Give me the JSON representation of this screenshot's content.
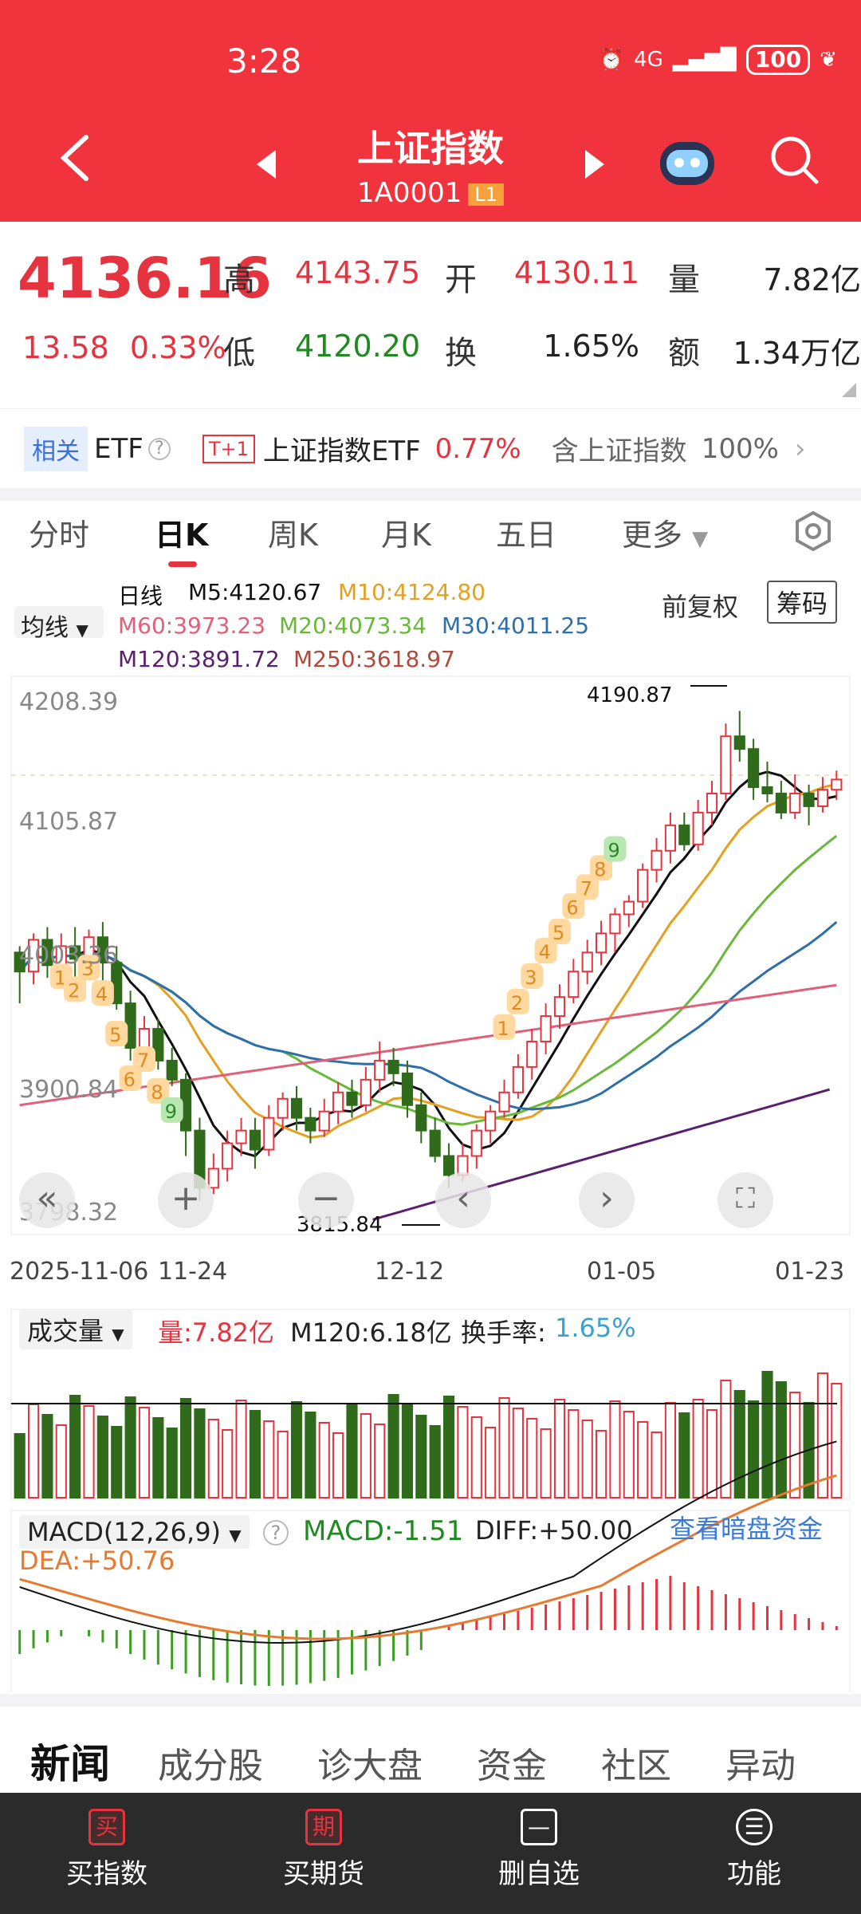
{
  "status": {
    "time": "3:28",
    "network": "4G",
    "battery": "100"
  },
  "header": {
    "title": "上证指数",
    "code": "1A0001",
    "level": "L1"
  },
  "quote": {
    "price": "4136.16",
    "change": "13.58",
    "change_pct": "0.33%",
    "high_label": "高",
    "high": "4143.75",
    "open_label": "开",
    "open": "4130.11",
    "vol_label": "量",
    "vol": "7.82亿",
    "low_label": "低",
    "low": "4120.20",
    "turn_label": "换",
    "turn": "1.65%",
    "amt_label": "额",
    "amt": "1.34万亿"
  },
  "etf": {
    "tag": "相关",
    "etf": "ETF",
    "tp": "T+1",
    "name": "上证指数ETF",
    "pct": "0.77%",
    "contains": "含上证指数",
    "weight": "100%"
  },
  "tabs": [
    "分时",
    "日K",
    "周K",
    "月K",
    "五日",
    "更多"
  ],
  "ma": {
    "selector": "均线",
    "line": "日线",
    "m5": "M5:4120.67",
    "m10": "M10:4124.80",
    "m60": "M60:3973.23",
    "m20": "M20:4073.34",
    "m30": "M30:4011.25",
    "m120": "M120:3891.72",
    "m250": "M250:3618.97"
  },
  "fuquan": "前复权",
  "chouma": "筹码",
  "axis": {
    "y1": "4208.39",
    "y2": "4105.87",
    "y3": "4003.36",
    "y4": "3900.84",
    "y5": "3798.32",
    "x1": "2025-11-06",
    "x2": "11-24",
    "x3": "12-12",
    "x4": "01-05",
    "x5": "01-23",
    "hi_mark": "4190.87",
    "lo_mark": "3815.84"
  },
  "volume": {
    "selector": "成交量",
    "vol": "量:7.82亿",
    "m120": "M120:6.18亿",
    "turn_label": "换手率:",
    "turn": "1.65%"
  },
  "macd": {
    "selector": "MACD(12,26,9)",
    "macd": "MACD:-1.51",
    "diff": "DIFF:+50.00",
    "dea": "DEA:+50.76",
    "dark": "查看暗盘资金"
  },
  "news_tabs": [
    "新闻",
    "成分股",
    "诊大盘",
    "资金",
    "社区",
    "异动"
  ],
  "bottom": [
    {
      "icon": "买",
      "label": "买指数"
    },
    {
      "icon": "期",
      "label": "买期货"
    },
    {
      "icon": "—",
      "label": "删自选"
    },
    {
      "icon": "☰",
      "label": "功能"
    }
  ],
  "td_numbers": [
    "1",
    "2",
    "3",
    "4",
    "5",
    "6",
    "7",
    "8",
    "9"
  ],
  "chart_data": {
    "type": "candlestick",
    "ylim": [
      3798.32,
      4208.39
    ],
    "series": [
      {
        "name": "K",
        "values": [
          [
            4000,
            3985,
            4005,
            3960
          ],
          [
            3985,
            4010,
            4015,
            3975
          ],
          [
            4010,
            3990,
            4020,
            3980
          ],
          [
            3990,
            4005,
            4015,
            3985
          ],
          [
            4005,
            3995,
            4020,
            3980
          ],
          [
            3995,
            4012,
            4018,
            3990
          ],
          [
            4012,
            3992,
            4024,
            3975
          ],
          [
            3992,
            3960,
            4005,
            3955
          ],
          [
            3960,
            3925,
            3970,
            3915
          ],
          [
            3925,
            3940,
            3950,
            3910
          ],
          [
            3940,
            3915,
            3948,
            3908
          ],
          [
            3915,
            3900,
            3925,
            3895
          ],
          [
            3900,
            3860,
            3905,
            3840
          ],
          [
            3860,
            3815,
            3870,
            3805
          ],
          [
            3815,
            3830,
            3842,
            3810
          ],
          [
            3830,
            3850,
            3860,
            3820
          ],
          [
            3850,
            3860,
            3870,
            3840
          ],
          [
            3860,
            3845,
            3870,
            3830
          ],
          [
            3845,
            3870,
            3880,
            3840
          ],
          [
            3870,
            3885,
            3890,
            3860
          ],
          [
            3885,
            3870,
            3895,
            3860
          ],
          [
            3870,
            3860,
            3878,
            3850
          ],
          [
            3860,
            3875,
            3885,
            3855
          ],
          [
            3875,
            3890,
            3898,
            3865
          ],
          [
            3890,
            3880,
            3900,
            3870
          ],
          [
            3880,
            3900,
            3910,
            3875
          ],
          [
            3900,
            3915,
            3930,
            3890
          ],
          [
            3915,
            3905,
            3925,
            3895
          ],
          [
            3905,
            3880,
            3915,
            3870
          ],
          [
            3880,
            3860,
            3890,
            3850
          ],
          [
            3860,
            3840,
            3870,
            3835
          ],
          [
            3840,
            3825,
            3850,
            3815
          ],
          [
            3825,
            3840,
            3850,
            3820
          ],
          [
            3840,
            3860,
            3865,
            3830
          ],
          [
            3860,
            3875,
            3880,
            3850
          ],
          [
            3875,
            3890,
            3900,
            3870
          ],
          [
            3890,
            3910,
            3920,
            3885
          ],
          [
            3910,
            3930,
            3940,
            3900
          ],
          [
            3930,
            3950,
            3960,
            3920
          ],
          [
            3950,
            3965,
            3975,
            3940
          ],
          [
            3965,
            3985,
            3995,
            3960
          ],
          [
            3985,
            4000,
            4010,
            3975
          ],
          [
            4000,
            4015,
            4025,
            3990
          ],
          [
            4015,
            4030,
            4035,
            4000
          ],
          [
            4030,
            4040,
            4045,
            4020
          ],
          [
            4040,
            4065,
            4070,
            4035
          ],
          [
            4065,
            4080,
            4090,
            4055
          ],
          [
            4080,
            4100,
            4110,
            4070
          ],
          [
            4100,
            4085,
            4110,
            4080
          ],
          [
            4085,
            4110,
            4120,
            4080
          ],
          [
            4110,
            4125,
            4135,
            4100
          ],
          [
            4125,
            4170,
            4180,
            4120
          ],
          [
            4170,
            4160,
            4190,
            4150
          ],
          [
            4160,
            4130,
            4168,
            4120
          ],
          [
            4130,
            4125,
            4150,
            4118
          ],
          [
            4125,
            4110,
            4135,
            4105
          ],
          [
            4110,
            4125,
            4140,
            4105
          ],
          [
            4125,
            4115,
            4132,
            4100
          ],
          [
            4115,
            4128,
            4138,
            4110
          ],
          [
            4128,
            4136,
            4143,
            4120
          ]
        ]
      }
    ]
  }
}
